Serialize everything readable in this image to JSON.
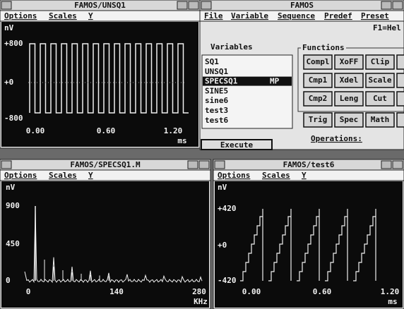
{
  "windows": [
    {
      "title": "FAMOS/UNSQ1",
      "menu": [
        "Options",
        "Scales",
        "Y"
      ],
      "unit": "nV",
      "yticks": [
        "+800",
        "+0",
        "-800"
      ],
      "xticks": [
        "0.00",
        "0.60",
        "1.20"
      ],
      "xunit": "ms"
    },
    {
      "title": "FAMOS/SPECSQ1.M",
      "menu": [
        "Options",
        "Scales",
        "Y"
      ],
      "unit": "nV",
      "yticks": [
        "900",
        "450",
        "0"
      ],
      "xticks": [
        "0",
        "140",
        "280"
      ],
      "xunit": "KHz"
    },
    {
      "title": "FAMOS/test6",
      "menu": [
        "Options",
        "Scales",
        "Y"
      ],
      "unit": "nV",
      "yticks": [
        "+420",
        "+0",
        "-420"
      ],
      "xticks": [
        "0.00",
        "0.60",
        "1.20"
      ],
      "xunit": "ms"
    }
  ],
  "famos": {
    "title": "FAMOS",
    "menu": [
      "File",
      "Variable",
      "Sequence",
      "Predef",
      "Preset"
    ],
    "help": "F1=Hel",
    "variables_label": "Variables",
    "variables": [
      "SQ1",
      "UNSQ1",
      "SPECSQ1",
      "SINE5",
      "sine6",
      "test3",
      "test6"
    ],
    "selected_tag": "MP",
    "execute": "Execute",
    "functions_label": "Functions",
    "buttons": [
      [
        "Compl",
        "XoFF",
        "Clip"
      ],
      [
        "Cmp1",
        "Xdel",
        "Scale"
      ],
      [
        "Cmp2",
        "Leng",
        "Cut"
      ],
      [
        "Trig",
        "Spec",
        "Math"
      ]
    ],
    "operations": "Operations:"
  }
}
